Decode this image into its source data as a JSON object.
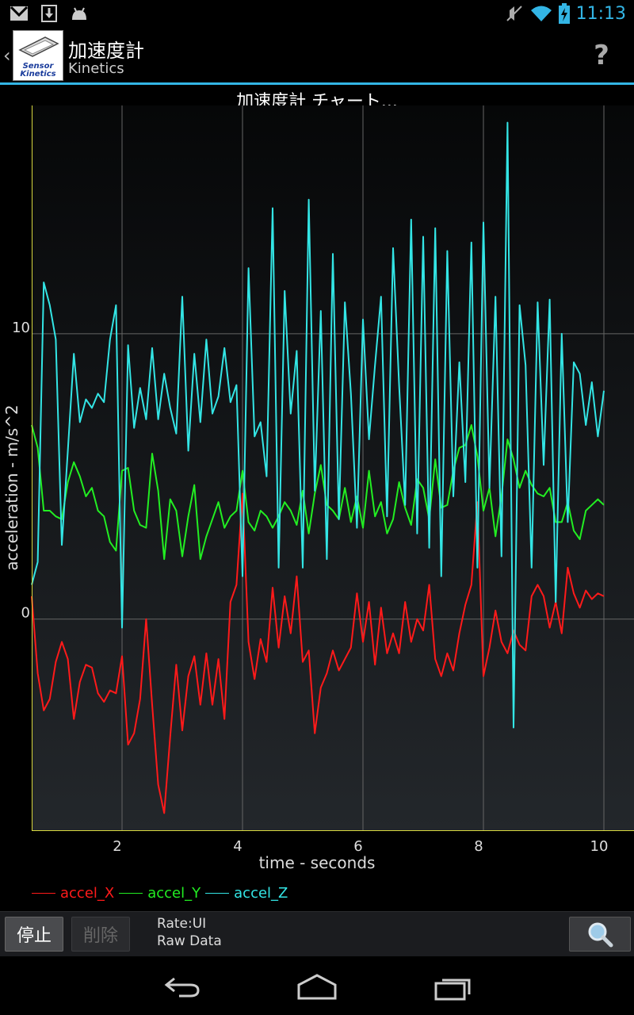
{
  "status_bar": {
    "time": "11:13",
    "left_icons": [
      "gmail-icon",
      "download-icon",
      "android-debug-icon"
    ],
    "right_icons": [
      "mute-icon",
      "wifi-icon",
      "battery-charging-icon"
    ]
  },
  "action_bar": {
    "app_icon_text": "Sensor Kinetics",
    "title": "加速度計",
    "subtitle": "Kinetics",
    "help_label": "?"
  },
  "chart_title": "加速度計 チャート...",
  "chart_data": {
    "type": "line",
    "xlabel": "time - seconds",
    "ylabel": "acceleration - m/s^2",
    "x_ticks": [
      "2",
      "4",
      "6",
      "8",
      "10"
    ],
    "y_ticks": [
      "0",
      "10"
    ],
    "xlim": [
      0.5,
      10.5
    ],
    "ylim": [
      -7.4,
      18
    ],
    "grid": true,
    "legend_placement": "bottom-left",
    "series": [
      {
        "name": "accel_X",
        "color": "#ff1a1a",
        "x": [
          0.5,
          0.6,
          0.7,
          0.8,
          0.9,
          1.0,
          1.1,
          1.2,
          1.3,
          1.4,
          1.5,
          1.6,
          1.7,
          1.8,
          1.9,
          2.0,
          2.1,
          2.2,
          2.3,
          2.4,
          2.5,
          2.6,
          2.7,
          2.8,
          2.9,
          3.0,
          3.1,
          3.2,
          3.3,
          3.4,
          3.5,
          3.6,
          3.7,
          3.8,
          3.9,
          4.0,
          4.1,
          4.2,
          4.3,
          4.4,
          4.5,
          4.6,
          4.7,
          4.8,
          4.9,
          5.0,
          5.1,
          5.2,
          5.3,
          5.4,
          5.5,
          5.6,
          5.7,
          5.8,
          5.9,
          6.0,
          6.1,
          6.2,
          6.3,
          6.4,
          6.5,
          6.6,
          6.7,
          6.8,
          6.9,
          7.0,
          7.1,
          7.2,
          7.3,
          7.4,
          7.5,
          7.6,
          7.7,
          7.8,
          7.9,
          8.0,
          8.1,
          8.2,
          8.3,
          8.4,
          8.5,
          8.6,
          8.7,
          8.8,
          8.9,
          9.0,
          9.1,
          9.2,
          9.3,
          9.4,
          9.5,
          9.6,
          9.7,
          9.8,
          9.9,
          10.0
        ],
        "values": [
          0.8,
          -1.9,
          -3.2,
          -2.8,
          -1.5,
          -0.8,
          -1.4,
          -3.5,
          -2.2,
          -1.6,
          -1.7,
          -2.6,
          -2.9,
          -2.5,
          -2.6,
          -1.3,
          -4.4,
          -4.0,
          -2.8,
          0.0,
          -3.0,
          -5.8,
          -6.8,
          -4.1,
          -1.6,
          -3.9,
          -2.0,
          -1.3,
          -3.0,
          -1.2,
          -3.0,
          -1.4,
          -3.5,
          0.6,
          1.2,
          4.4,
          -0.8,
          -2.1,
          -0.7,
          -1.5,
          1.1,
          -1.0,
          0.8,
          -0.5,
          1.5,
          -1.5,
          -1.1,
          -4.0,
          -2.4,
          -1.9,
          -1.1,
          -1.8,
          -1.4,
          -1.0,
          0.9,
          -0.8,
          0.6,
          -1.6,
          0.4,
          -1.2,
          -0.5,
          -1.2,
          0.6,
          -0.8,
          0.0,
          -0.4,
          1.2,
          -1.4,
          -2.0,
          -1.2,
          -1.8,
          -0.5,
          0.5,
          1.2,
          4.1,
          -2.0,
          -1.0,
          0.3,
          -0.8,
          -1.2,
          -0.4,
          -0.9,
          -1.1,
          0.8,
          1.2,
          0.8,
          -0.3,
          0.6,
          -0.5,
          1.8,
          0.9,
          0.4,
          1.0,
          0.7,
          0.9,
          0.8
        ]
      },
      {
        "name": "accel_Y",
        "color": "#22ee22",
        "x": [
          0.5,
          0.6,
          0.7,
          0.8,
          0.9,
          1.0,
          1.1,
          1.2,
          1.3,
          1.4,
          1.5,
          1.6,
          1.7,
          1.8,
          1.9,
          2.0,
          2.1,
          2.2,
          2.3,
          2.4,
          2.5,
          2.6,
          2.7,
          2.8,
          2.9,
          3.0,
          3.1,
          3.2,
          3.3,
          3.4,
          3.5,
          3.6,
          3.7,
          3.8,
          3.9,
          4.0,
          4.1,
          4.2,
          4.3,
          4.4,
          4.5,
          4.6,
          4.7,
          4.8,
          4.9,
          5.0,
          5.1,
          5.2,
          5.3,
          5.4,
          5.5,
          5.6,
          5.7,
          5.8,
          5.9,
          6.0,
          6.1,
          6.2,
          6.3,
          6.4,
          6.5,
          6.6,
          6.7,
          6.8,
          6.9,
          7.0,
          7.1,
          7.2,
          7.3,
          7.4,
          7.5,
          7.6,
          7.7,
          7.8,
          7.9,
          8.0,
          8.1,
          8.2,
          8.3,
          8.4,
          8.5,
          8.6,
          8.7,
          8.8,
          8.9,
          9.0,
          9.1,
          9.2,
          9.3,
          9.4,
          9.5,
          9.6,
          9.7,
          9.8,
          9.9,
          10.0
        ],
        "values": [
          6.8,
          6.0,
          3.8,
          3.8,
          3.6,
          3.5,
          4.8,
          5.5,
          5.0,
          4.3,
          4.6,
          3.8,
          3.6,
          2.7,
          2.4,
          5.2,
          5.3,
          3.8,
          3.3,
          3.2,
          5.8,
          4.5,
          2.1,
          4.2,
          3.8,
          2.2,
          3.6,
          4.7,
          2.1,
          2.9,
          3.5,
          4.1,
          3.2,
          3.6,
          3.8,
          5.2,
          3.4,
          3.1,
          3.8,
          3.6,
          3.2,
          3.6,
          4.1,
          3.8,
          3.3,
          4.5,
          3.0,
          4.4,
          5.4,
          4.0,
          3.8,
          3.5,
          4.6,
          3.4,
          4.3,
          3.2,
          5.2,
          3.6,
          4.1,
          3.0,
          3.5,
          4.8,
          3.9,
          3.3,
          4.9,
          4.6,
          3.5,
          5.6,
          3.9,
          4.0,
          5.2,
          6.0,
          6.1,
          6.8,
          5.7,
          3.8,
          4.6,
          2.9,
          4.3,
          6.3,
          5.6,
          4.6,
          5.2,
          4.7,
          4.4,
          4.3,
          4.6,
          3.4,
          3.4,
          4.1,
          3.1,
          2.8,
          3.8,
          4.0,
          4.2,
          4.0
        ]
      },
      {
        "name": "accel_Z",
        "color": "#33e5e5",
        "x": [
          0.5,
          0.6,
          0.7,
          0.8,
          0.9,
          1.0,
          1.1,
          1.2,
          1.3,
          1.4,
          1.5,
          1.6,
          1.7,
          1.8,
          1.9,
          2.0,
          2.1,
          2.2,
          2.3,
          2.4,
          2.5,
          2.6,
          2.7,
          2.8,
          2.9,
          3.0,
          3.1,
          3.2,
          3.3,
          3.4,
          3.5,
          3.6,
          3.7,
          3.8,
          3.9,
          4.0,
          4.1,
          4.2,
          4.3,
          4.4,
          4.5,
          4.6,
          4.7,
          4.8,
          4.9,
          5.0,
          5.1,
          5.2,
          5.3,
          5.4,
          5.5,
          5.6,
          5.7,
          5.8,
          5.9,
          6.0,
          6.1,
          6.2,
          6.3,
          6.4,
          6.5,
          6.6,
          6.7,
          6.8,
          6.9,
          7.0,
          7.1,
          7.2,
          7.3,
          7.4,
          7.5,
          7.6,
          7.7,
          7.8,
          7.9,
          8.0,
          8.1,
          8.2,
          8.3,
          8.4,
          8.5,
          8.6,
          8.7,
          8.8,
          8.9,
          9.0,
          9.1,
          9.2,
          9.3,
          9.4,
          9.5,
          9.6,
          9.7,
          9.8,
          9.9,
          10.0
        ],
        "values": [
          1.2,
          2.0,
          11.8,
          11.0,
          9.8,
          2.6,
          5.9,
          9.3,
          6.9,
          7.7,
          7.4,
          7.9,
          7.6,
          9.8,
          11.0,
          -0.3,
          9.6,
          6.7,
          8.1,
          7.0,
          9.5,
          7.0,
          8.6,
          7.4,
          6.5,
          11.3,
          5.9,
          9.3,
          6.9,
          9.8,
          7.2,
          7.8,
          9.5,
          7.6,
          8.2,
          1.5,
          12.3,
          6.4,
          6.9,
          5.0,
          14.4,
          1.8,
          11.5,
          7.2,
          9.4,
          1.8,
          14.7,
          4.5,
          10.8,
          2.1,
          12.8,
          3.5,
          11.1,
          7.9,
          3.2,
          10.5,
          6.3,
          8.9,
          11.3,
          3.6,
          13.0,
          8.2,
          4.0,
          14.0,
          3.0,
          13.4,
          2.5,
          13.7,
          1.5,
          12.9,
          4.3,
          9.0,
          4.8,
          13.2,
          1.8,
          13.9,
          4.6,
          11.3,
          2.2,
          17.4,
          -3.8,
          11.0,
          8.9,
          1.8,
          11.1,
          5.4,
          11.2,
          0.6,
          10.0,
          3.4,
          9.0,
          8.6,
          6.8,
          8.3,
          6.4,
          8.0
        ]
      }
    ]
  },
  "bottom_bar": {
    "stop_label": "停止",
    "delete_label": "削除",
    "rate_text": "Rate:UI",
    "mode_text": "Raw Data",
    "zoom_icon": "zoom-search-icon"
  },
  "nav_bar": {
    "icons": [
      "back-icon",
      "home-icon",
      "recent-apps-icon"
    ]
  }
}
